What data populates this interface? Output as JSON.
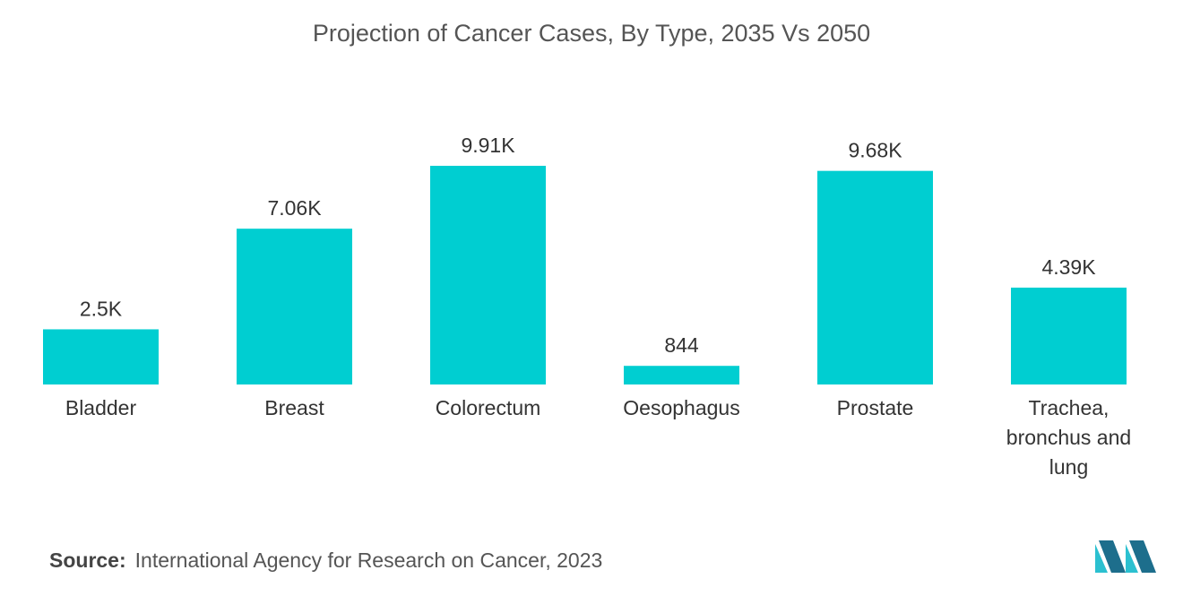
{
  "colors": {
    "bar": "#00CED1",
    "text": "#333333",
    "logo_dark": "#1D6E8C",
    "logo_light": "#2BC0D0"
  },
  "chart_data": {
    "type": "bar",
    "title": "Projection of Cancer Cases, By Type, 2035 Vs 2050",
    "categories": [
      [
        "Bladder"
      ],
      [
        "Breast"
      ],
      [
        "Colorectum"
      ],
      [
        "Oesophagus"
      ],
      [
        "Prostate"
      ],
      [
        "Trachea,",
        "bronchus and",
        "lung"
      ]
    ],
    "values": [
      2500,
      7060,
      9910,
      844,
      9680,
      4390
    ],
    "value_labels": [
      "2.5K",
      "7.06K",
      "9.91K",
      "844",
      "9.68K",
      "4.39K"
    ],
    "xlabel": "",
    "ylabel": "",
    "ylim": [
      0,
      9910
    ],
    "grid": false,
    "legend": "none"
  },
  "source": {
    "key": "Source:",
    "text": "International Agency for Research on Cancer, 2023"
  },
  "logo": {
    "icon": "company-logo-icon"
  }
}
